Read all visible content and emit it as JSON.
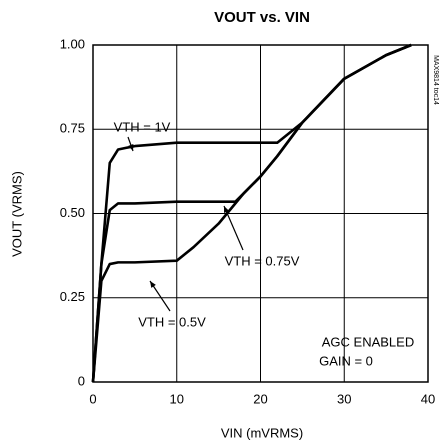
{
  "chart_data": {
    "type": "line",
    "title": "VOUT vs. VIN",
    "x_label": "VIN (mVRMS)",
    "y_label": "VOUT (VRMS)",
    "watermark": "MAX9814 toc14",
    "annotations": [
      "AGC ENABLED",
      "GAIN = 0"
    ],
    "x": [
      0,
      1,
      2,
      3,
      5,
      10,
      12,
      15,
      17,
      18,
      20,
      22,
      25,
      30,
      35,
      38
    ],
    "series": [
      {
        "name": "VTH = 1V",
        "color": "#000000",
        "values": [
          0,
          0.35,
          0.65,
          0.69,
          0.7,
          0.71,
          0.71,
          0.71,
          0.71,
          0.71,
          0.71,
          0.71,
          0.77,
          0.9,
          0.97,
          1.0
        ]
      },
      {
        "name": "VTH = 0.75V",
        "color": "#000000",
        "values": [
          0,
          0.35,
          0.51,
          0.53,
          0.53,
          0.535,
          0.535,
          0.535,
          0.535,
          0.56,
          0.61,
          0.67,
          0.77,
          0.9,
          0.97,
          1.0
        ]
      },
      {
        "name": "VTH = 0.5V",
        "color": "#000000",
        "values": [
          0,
          0.3,
          0.35,
          0.355,
          0.355,
          0.36,
          0.4,
          0.47,
          0.53,
          0.56,
          0.61,
          0.67,
          0.77,
          0.9,
          0.97,
          1.0
        ]
      }
    ],
    "xlim": [
      0,
      40
    ],
    "xticks": [
      0,
      10,
      20,
      30,
      40
    ],
    "ylim": [
      0,
      1
    ],
    "yticks": [
      0,
      0.25,
      {
        "value": 0.5,
        "label": "0.50"
      },
      0.75,
      {
        "value": 1,
        "label": "1.00"
      }
    ],
    "grid": true
  }
}
